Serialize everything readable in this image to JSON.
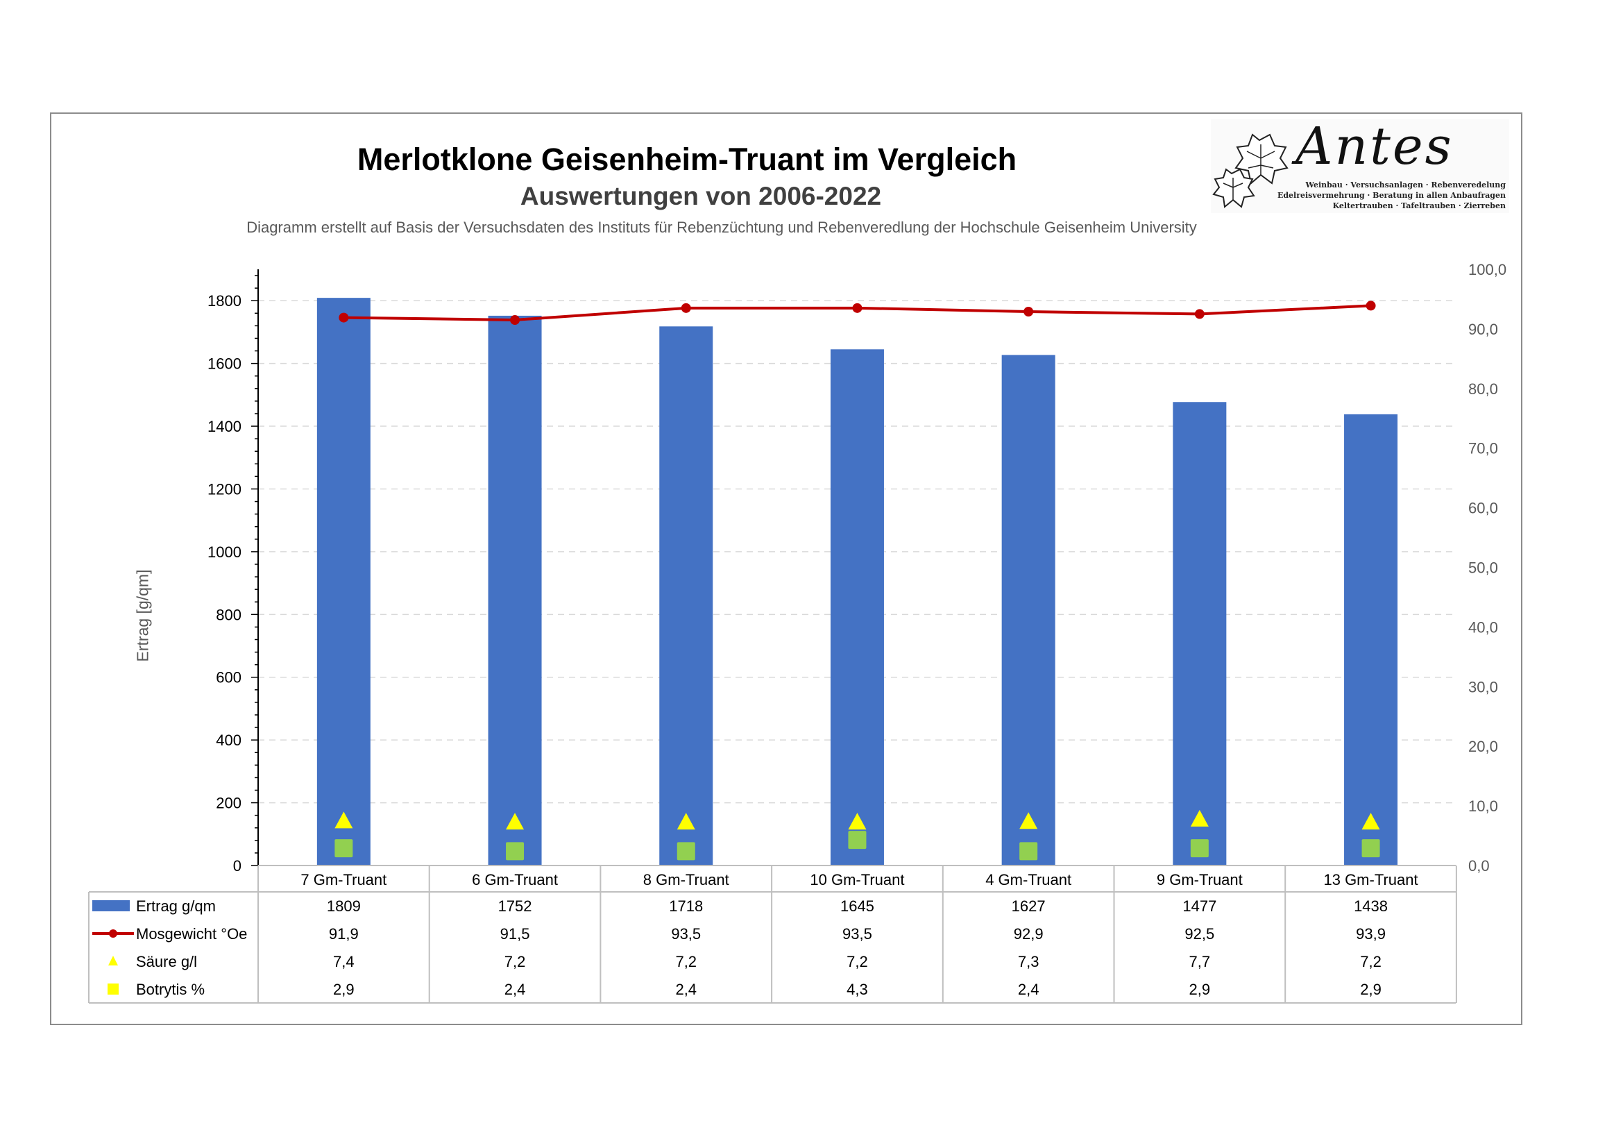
{
  "header": {
    "title": "Merlotklone Geisenheim-Truant im Vergleich",
    "subtitle": "Auswertungen von 2006-2022",
    "source": "Diagramm erstellt auf Basis der Versuchsdaten des Instituts für Rebenzüchtung und Rebenveredlung der Hochschule Geisenheim University"
  },
  "logo": {
    "name": "Antes",
    "line1": "Weinbau · Versuchsanlagen · Rebenveredelung",
    "line2": "Edelreisvermehrung · Beratung in allen Anbaufragen",
    "line3": "Keltertrauben · Tafeltrauben · Zierreben"
  },
  "colors": {
    "bar": "#4472C4",
    "line": "#C00000",
    "triangle": "#FFFF00",
    "square": "#92D050",
    "square_legend": "#FFFF00",
    "grid": "#D9D9D9"
  },
  "chart_data": {
    "type": "bar",
    "title": "Merlotklone Geisenheim-Truant im Vergleich",
    "subtitle": "Auswertungen von 2006-2022",
    "ylabel": "Ertrag [g/qm]",
    "categories": [
      "7 Gm-Truant",
      "6 Gm-Truant",
      "8 Gm-Truant",
      "10 Gm-Truant",
      "4 Gm-Truant",
      "9 Gm-Truant",
      "13 Gm-Truant"
    ],
    "ylim": [
      0,
      1900
    ],
    "yticks": [
      "0",
      "200",
      "400",
      "600",
      "800",
      "1000",
      "1200",
      "1400",
      "1600",
      "1800"
    ],
    "y2lim": [
      0,
      100
    ],
    "y2ticks": [
      "0,0",
      "10,0",
      "20,0",
      "30,0",
      "40,0",
      "50,0",
      "60,0",
      "70,0",
      "80,0",
      "90,0",
      "100,0"
    ],
    "grid": true,
    "legend": "data table below chart",
    "series": [
      {
        "name": "Ertrag g/qm",
        "kind": "bar",
        "axis": "left",
        "values": [
          1809,
          1752,
          1718,
          1645,
          1627,
          1477,
          1438
        ],
        "labels": [
          "1809",
          "1752",
          "1718",
          "1645",
          "1627",
          "1477",
          "1438"
        ]
      },
      {
        "name": "Mosgewicht °Oe",
        "kind": "line",
        "axis": "right",
        "values": [
          91.9,
          91.5,
          93.5,
          93.5,
          92.9,
          92.5,
          93.9
        ],
        "labels": [
          "91,9",
          "91,5",
          "93,5",
          "93,5",
          "92,9",
          "92,5",
          "93,9"
        ]
      },
      {
        "name": "Säure g/l",
        "kind": "triangle",
        "axis": "right",
        "values": [
          7.4,
          7.2,
          7.2,
          7.2,
          7.3,
          7.7,
          7.2
        ],
        "labels": [
          "7,4",
          "7,2",
          "7,2",
          "7,2",
          "7,3",
          "7,7",
          "7,2"
        ]
      },
      {
        "name": "Botrytis %",
        "kind": "square",
        "axis": "right",
        "values": [
          2.9,
          2.4,
          2.4,
          4.3,
          2.4,
          2.9,
          2.9
        ],
        "labels": [
          "2,9",
          "2,4",
          "2,4",
          "4,3",
          "2,4",
          "2,9",
          "2,9"
        ]
      }
    ]
  }
}
